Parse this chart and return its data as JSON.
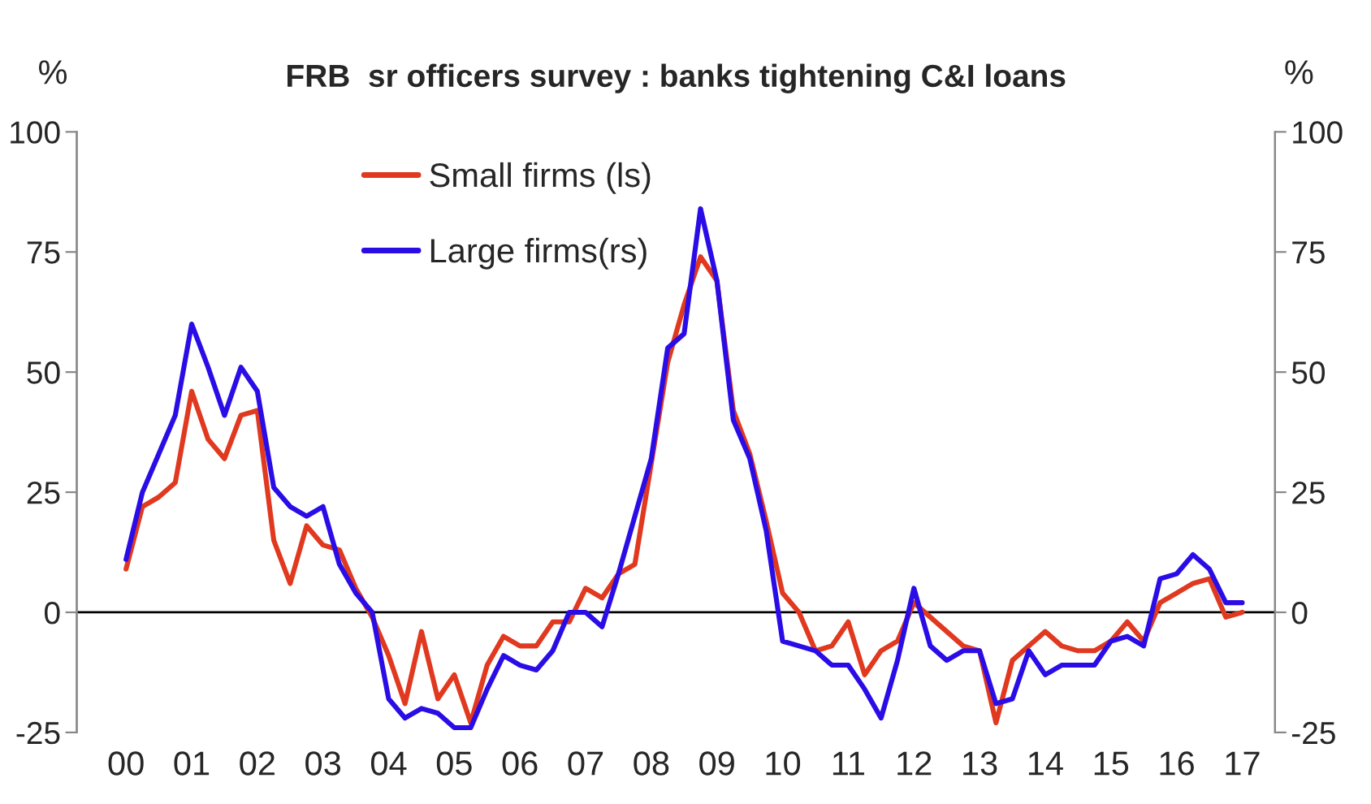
{
  "chart_data": {
    "type": "line",
    "title": "FRB  sr officers survey : banks tightening C&I loans",
    "ylabel": "%",
    "y2label": "%",
    "x": [
      2000,
      2000.25,
      2000.5,
      2000.75,
      2001,
      2001.25,
      2001.5,
      2001.75,
      2002,
      2002.25,
      2002.5,
      2002.75,
      2003,
      2003.25,
      2003.5,
      2003.75,
      2004,
      2004.25,
      2004.5,
      2004.75,
      2005,
      2005.25,
      2005.5,
      2005.75,
      2006,
      2006.25,
      2006.5,
      2006.75,
      2007,
      2007.25,
      2007.5,
      2007.75,
      2008,
      2008.25,
      2008.5,
      2008.75,
      2009,
      2009.25,
      2009.5,
      2009.75,
      2010,
      2010.25,
      2010.5,
      2010.75,
      2011,
      2011.25,
      2011.5,
      2011.75,
      2012,
      2012.25,
      2012.5,
      2012.75,
      2013,
      2013.25,
      2013.5,
      2013.75,
      2014,
      2014.25,
      2014.5,
      2014.75,
      2015,
      2015.25,
      2015.5,
      2015.75,
      2016,
      2016.25,
      2016.5,
      2016.75,
      2017
    ],
    "series": [
      {
        "name": "Small firms (ls)",
        "color": "#e0391f",
        "axis": "y",
        "values": [
          9,
          22,
          24,
          27,
          46,
          36,
          32,
          41,
          42,
          15,
          6,
          18,
          14,
          13,
          5,
          -1,
          -9,
          -19,
          -4,
          -18,
          -13,
          -23,
          -11,
          -5,
          -7,
          -7,
          -2,
          -2,
          5,
          3,
          8,
          10,
          31,
          52,
          64,
          74,
          69,
          42,
          33,
          19,
          4,
          0,
          -8,
          -7,
          -2,
          -13,
          -8,
          -6,
          2,
          -1,
          -4,
          -7,
          -8,
          -23,
          -10,
          -7,
          -4,
          -7,
          -8,
          -8,
          -6,
          -2,
          -6,
          2,
          4,
          6,
          7,
          -1,
          0
        ]
      },
      {
        "name": "Large firms(rs)",
        "color": "#2a0de6",
        "axis": "y2",
        "values": [
          11,
          25,
          33,
          41,
          60,
          51,
          41,
          51,
          46,
          26,
          22,
          20,
          22,
          10,
          4,
          0,
          -18,
          -22,
          -20,
          -21,
          -24,
          -24,
          -16,
          -9,
          -11,
          -12,
          -8,
          0,
          0,
          -3,
          8,
          20,
          32,
          55,
          58,
          84,
          69,
          40,
          32,
          17,
          -6,
          -7,
          -8,
          -11,
          -11,
          -16,
          -22,
          -10,
          5,
          -7,
          -10,
          -8,
          -8,
          -19,
          -18,
          -8,
          -13,
          -11,
          -11,
          -11,
          -6,
          -5,
          -7,
          7,
          8,
          12,
          9,
          2,
          2
        ]
      }
    ],
    "xlim": [
      1999.25,
      2017.5
    ],
    "xticks": [
      {
        "value": 2000,
        "label": "00"
      },
      {
        "value": 2001,
        "label": "01"
      },
      {
        "value": 2002,
        "label": "02"
      },
      {
        "value": 2003,
        "label": "03"
      },
      {
        "value": 2004,
        "label": "04"
      },
      {
        "value": 2005,
        "label": "05"
      },
      {
        "value": 2006,
        "label": "06"
      },
      {
        "value": 2007,
        "label": "07"
      },
      {
        "value": 2008,
        "label": "08"
      },
      {
        "value": 2009,
        "label": "09"
      },
      {
        "value": 2010,
        "label": "10"
      },
      {
        "value": 2011,
        "label": "11"
      },
      {
        "value": 2012,
        "label": "12"
      },
      {
        "value": 2013,
        "label": "13"
      },
      {
        "value": 2014,
        "label": "14"
      },
      {
        "value": 2015,
        "label": "15"
      },
      {
        "value": 2016,
        "label": "16"
      },
      {
        "value": 2017,
        "label": "17"
      }
    ],
    "ylim": [
      -25,
      100
    ],
    "yticks": [
      -25,
      0,
      25,
      50,
      75,
      100
    ],
    "y2lim": [
      -25,
      100
    ],
    "y2ticks": [
      -25,
      0,
      25,
      50,
      75,
      100
    ],
    "ref_lines": [
      {
        "axis": "y",
        "value": 0,
        "color": "#000000"
      }
    ],
    "grid": false,
    "legend": "top",
    "line_style": "solid",
    "marker": "none"
  }
}
